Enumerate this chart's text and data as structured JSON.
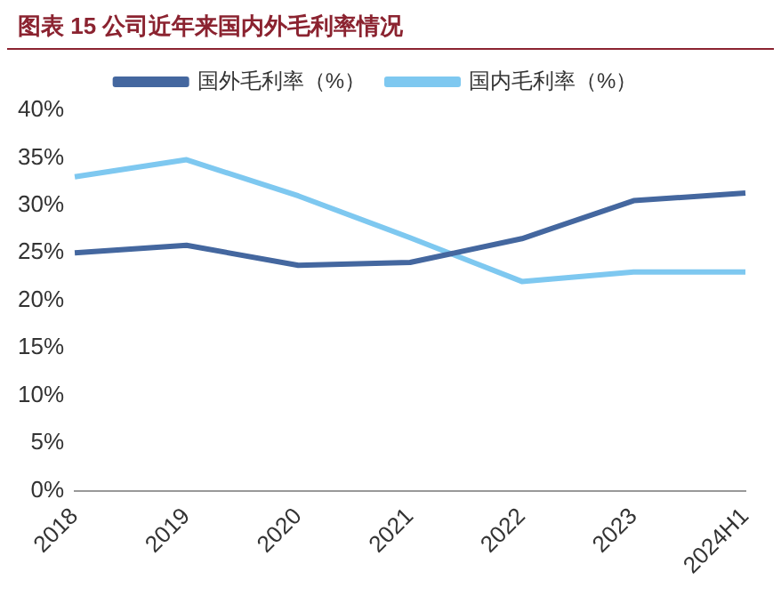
{
  "chart_data": {
    "type": "line",
    "title": "图表 15 公司近年来国内外毛利率情况",
    "categories": [
      "2018",
      "2019",
      "2020",
      "2021",
      "2022",
      "2023",
      "2024H1"
    ],
    "series": [
      {
        "name": "国外毛利率（%）",
        "color": "#44679f",
        "values": [
          25,
          25.8,
          23.7,
          24,
          26.5,
          30.5,
          31.3
        ]
      },
      {
        "name": "国内毛利率（%）",
        "color": "#7ec8f0",
        "values": [
          33,
          34.8,
          31,
          26.6,
          22,
          23,
          23
        ]
      }
    ],
    "ylim": [
      0,
      40
    ],
    "yticks": [
      {
        "value": 0,
        "label": "0%"
      },
      {
        "value": 5,
        "label": "5%"
      },
      {
        "value": 10,
        "label": "10%"
      },
      {
        "value": 15,
        "label": "15%"
      },
      {
        "value": 20,
        "label": "20%"
      },
      {
        "value": 25,
        "label": "25%"
      },
      {
        "value": 30,
        "label": "30%"
      },
      {
        "value": 35,
        "label": "35%"
      },
      {
        "value": 40,
        "label": "40%"
      }
    ],
    "grid": false,
    "legend": "top",
    "marker": "none",
    "line_style": "solid"
  }
}
